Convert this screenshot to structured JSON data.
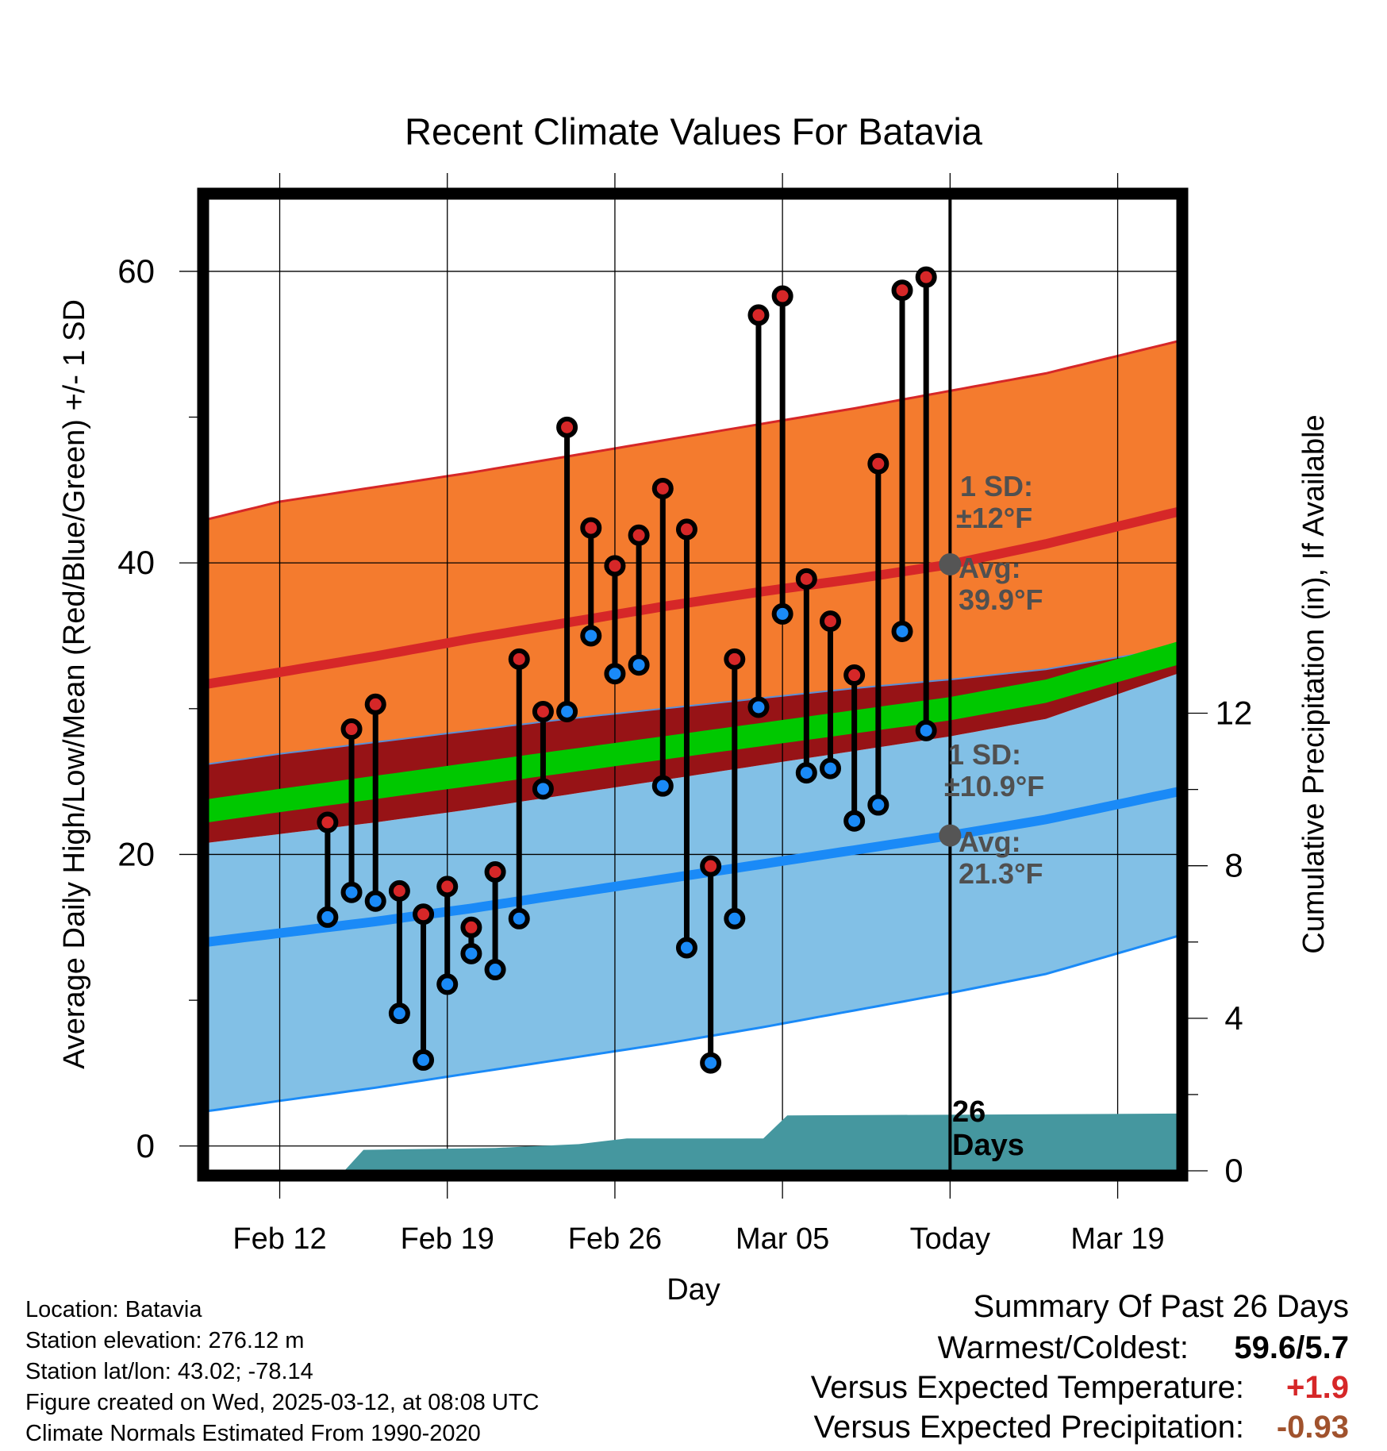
{
  "chart_data": {
    "type": "line",
    "title": "Recent Climate Values For Batavia",
    "xlabel": "Day",
    "ylabel": "Average Daily High/Low/Mean (Red/Blue/Green) +/- 1 SD",
    "y2label": "Cumulative Precipitation (in), If Available",
    "x_ticks": [
      {
        "day": -28,
        "label": "Feb 12"
      },
      {
        "day": -21,
        "label": "Feb 19"
      },
      {
        "day": -14,
        "label": "Feb 26"
      },
      {
        "day": -7,
        "label": "Mar 05"
      },
      {
        "day": 0,
        "label": "Today"
      },
      {
        "day": 7,
        "label": "Mar 19"
      }
    ],
    "xlim": [
      -31,
      9.5
    ],
    "ylim": [
      -1.7,
      65
    ],
    "y_ticks": [
      "0",
      "20",
      "40",
      "60"
    ],
    "y_values": [
      0,
      20,
      40,
      60
    ],
    "y_minor_ticks": [
      10,
      30,
      50
    ],
    "y2lim": [
      0,
      25.5
    ],
    "y2_ticks": [
      "0",
      "4",
      "8",
      "12"
    ],
    "y2_values": [
      0,
      4,
      8,
      12
    ],
    "normals": {
      "days": [
        -31,
        -28,
        -24,
        -20,
        -16,
        -12,
        -8,
        -4,
        0,
        4,
        9.5
      ],
      "high_mean": [
        31.7,
        32.5,
        33.6,
        34.8,
        35.9,
        37.0,
        38.0,
        38.9,
        39.9,
        41.3,
        43.5
      ],
      "high_upper": [
        43.0,
        44.2,
        45.2,
        46.2,
        47.3,
        48.4,
        49.5,
        50.6,
        51.8,
        53.0,
        55.2
      ],
      "high_lower": [
        26.2,
        26.9,
        27.7,
        28.5,
        29.3,
        30.0,
        30.7,
        31.4,
        32.0,
        32.7,
        34.2
      ],
      "mean": [
        23.0,
        23.7,
        24.6,
        25.5,
        26.4,
        27.3,
        28.2,
        29.1,
        30.0,
        31.2,
        33.8
      ],
      "mean_upper": [
        23.8,
        24.5,
        25.4,
        26.3,
        27.2,
        28.1,
        29.0,
        29.9,
        30.8,
        32.0,
        34.6
      ],
      "mean_lower": [
        22.2,
        22.9,
        23.8,
        24.7,
        25.6,
        26.5,
        27.4,
        28.3,
        29.2,
        30.4,
        33.0
      ],
      "low_mean": [
        14.0,
        14.6,
        15.4,
        16.3,
        17.3,
        18.3,
        19.3,
        20.3,
        21.3,
        22.4,
        24.3
      ],
      "low_upper": [
        20.8,
        21.4,
        22.2,
        23.1,
        24.1,
        25.1,
        26.1,
        27.1,
        28.1,
        29.3,
        32.4
      ],
      "low_lower": [
        2.4,
        3.1,
        4.0,
        5.0,
        6.0,
        7.0,
        8.1,
        9.3,
        10.5,
        11.8,
        14.4
      ]
    },
    "colors": {
      "high_band": "#f47b2e",
      "high_line": "#d62728",
      "low_band": "#82c0e6",
      "low_line": "#1a8af7",
      "overlap_band": "#971316",
      "mean_line": "#00c800",
      "precip": "#45979f",
      "high_dot": "#d62728",
      "low_dot": "#1a8af7"
    },
    "series": [
      {
        "name": "High",
        "values": [
          22.2,
          28.6,
          30.3,
          17.5,
          15.9,
          17.8,
          15.0,
          18.8,
          33.4,
          29.8,
          49.3,
          42.4,
          39.8,
          41.9,
          45.1,
          42.3,
          19.2,
          33.4,
          57.0,
          58.3,
          38.9,
          36.0,
          32.3,
          46.8,
          58.7,
          59.6
        ]
      },
      {
        "name": "Low",
        "values": [
          15.7,
          17.4,
          16.8,
          9.1,
          5.9,
          11.1,
          13.2,
          12.1,
          15.6,
          24.5,
          29.8,
          35.0,
          32.4,
          33.0,
          24.7,
          13.6,
          5.7,
          15.6,
          30.1,
          36.5,
          25.6,
          25.9,
          22.3,
          23.4,
          35.3,
          28.5
        ]
      }
    ],
    "obs_start_day": -26,
    "precip": {
      "days": [
        -31,
        -25.3,
        -24.5,
        -19,
        -15.5,
        -13.5,
        -7.8,
        -6.8,
        9.5
      ],
      "values": [
        0,
        0,
        0.55,
        0.6,
        0.7,
        0.85,
        0.85,
        1.45,
        1.5
      ]
    },
    "annotations": {
      "high_sd": [
        "1 SD:",
        "±12°F"
      ],
      "high_avg": [
        "Avg:",
        "39.9°F"
      ],
      "low_sd": [
        "1 SD:",
        "±10.9°F"
      ],
      "low_avg": [
        "Avg:",
        "21.3°F"
      ],
      "today_avg_high": 39.9,
      "today_avg_low": 21.3,
      "days_count": [
        "26",
        "Days"
      ]
    }
  },
  "metadata": {
    "location": "Location: Batavia",
    "elevation": "Station elevation: 276.12 m",
    "latlon": "Station lat/lon: 43.02; -78.14",
    "created": "Figure created on Wed, 2025-03-12, at 08:08 UTC",
    "normals": "Climate Normals Estimated From 1990-2020"
  },
  "summary": {
    "title": "Summary Of Past 26 Days",
    "warmest_label": "Warmest/Coldest:",
    "warmest_value": "59.6/5.7",
    "temp_label": "Versus Expected Temperature:",
    "temp_value": "+1.9",
    "temp_color": "#d62728",
    "precip_label": "Versus Expected Precipitation:",
    "precip_value": "-0.93",
    "precip_color": "#a0522d"
  }
}
